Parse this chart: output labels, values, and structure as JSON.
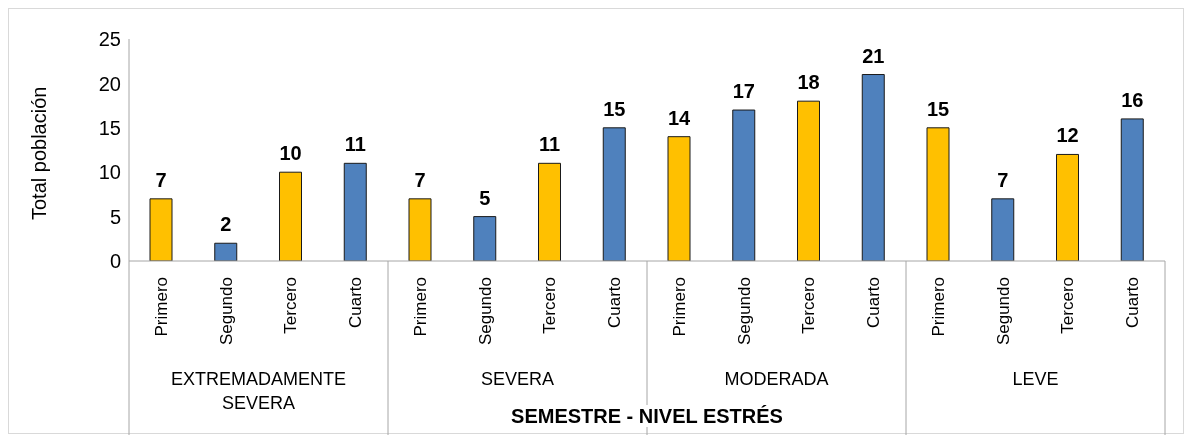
{
  "chart_data": {
    "type": "bar",
    "xlabel": "SEMESTRE - NIVEL ESTRÉS",
    "ylabel": "Total población",
    "categories": [
      "Primero",
      "Segundo",
      "Tercero",
      "Cuarto",
      "Primero",
      "Segundo",
      "Tercero",
      "Cuarto",
      "Primero",
      "Segundo",
      "Tercero",
      "Cuarto",
      "Primero",
      "Segundo",
      "Tercero",
      "Cuarto"
    ],
    "values": [
      7,
      2,
      10,
      11,
      7,
      5,
      11,
      15,
      14,
      17,
      18,
      21,
      15,
      7,
      12,
      16
    ],
    "colors": [
      "#ffc000",
      "#4f81bd",
      "#ffc000",
      "#4f81bd",
      "#ffc000",
      "#4f81bd",
      "#ffc000",
      "#4f81bd",
      "#ffc000",
      "#4f81bd",
      "#ffc000",
      "#4f81bd",
      "#ffc000",
      "#4f81bd",
      "#ffc000",
      "#4f81bd"
    ],
    "annotations": [
      "EXTREMADAMENTE SEVERA",
      "SEVERA",
      "MODERADA",
      "LEVE"
    ],
    "ylim": [
      0,
      25
    ],
    "yticks": [
      0,
      5,
      10,
      15,
      20,
      25
    ],
    "data_labels": true
  }
}
